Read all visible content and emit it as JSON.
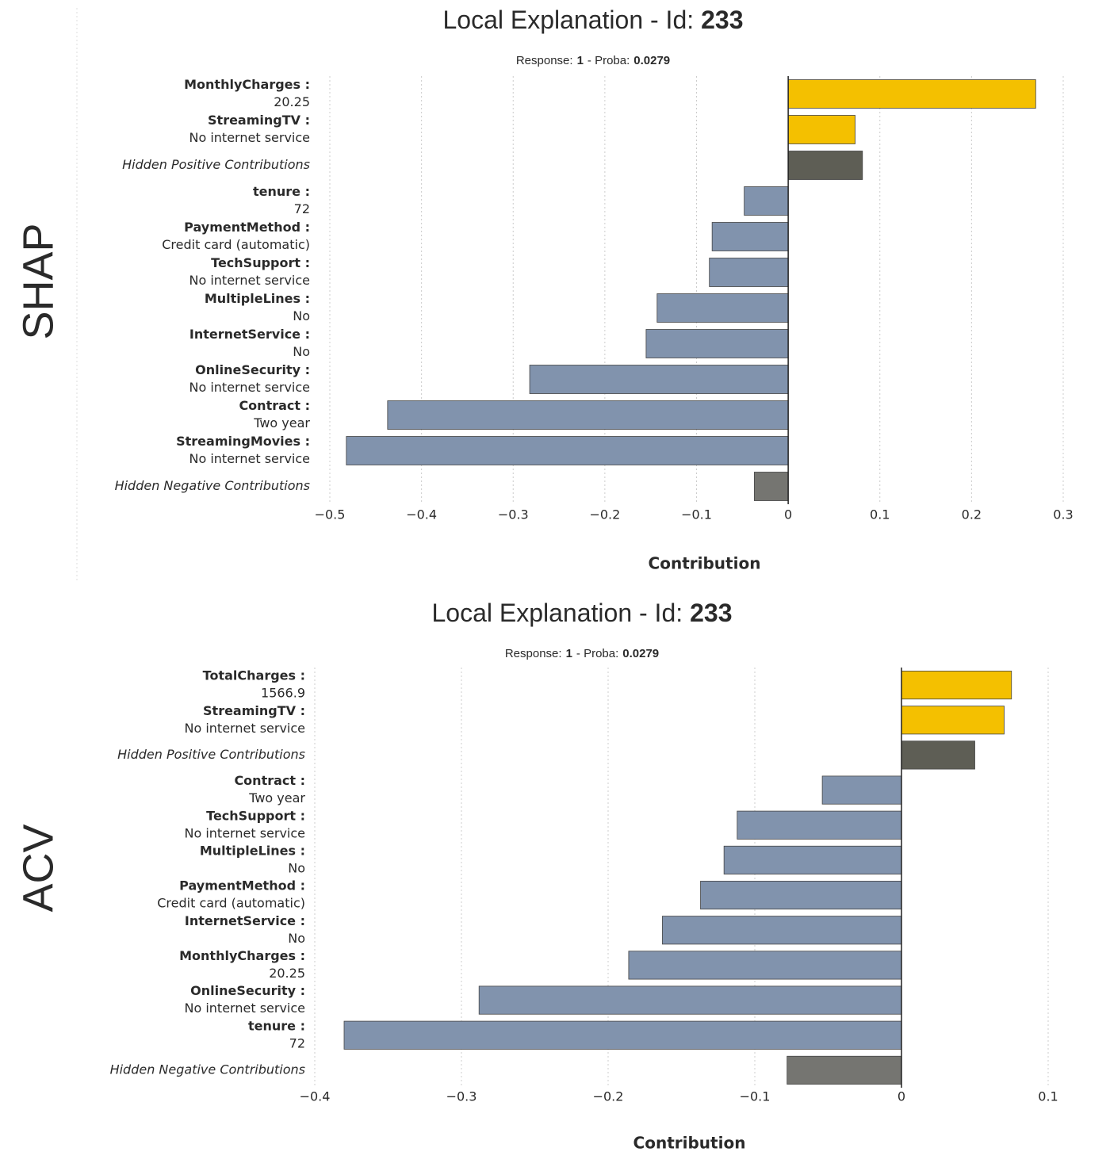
{
  "chart_data": [
    {
      "type": "barh",
      "method": "SHAP",
      "title": "Local Explanation - Id:",
      "id": "233",
      "response_label": "Response:",
      "response": "1",
      "proba_label": "- Proba:",
      "proba": "0.0279",
      "xlabel": "Contribution",
      "categories": [
        {
          "name": "MonthlyCharges :",
          "value": "20.25"
        },
        {
          "name": "StreamingTV :",
          "value": "No internet service"
        },
        {
          "name": "Hidden Positive Contributions"
        },
        {
          "name": "tenure :",
          "value": "72"
        },
        {
          "name": "PaymentMethod :",
          "value": "Credit card (automatic)"
        },
        {
          "name": "TechSupport :",
          "value": "No internet service"
        },
        {
          "name": "MultipleLines :",
          "value": "No"
        },
        {
          "name": "InternetService :",
          "value": "No"
        },
        {
          "name": "OnlineSecurity :",
          "value": "No internet service"
        },
        {
          "name": "Contract :",
          "value": "Two year"
        },
        {
          "name": "StreamingMovies :",
          "value": "No internet service"
        },
        {
          "name": "Hidden Negative Contributions"
        }
      ],
      "values": [
        0.27,
        0.073,
        0.081,
        -0.048,
        -0.083,
        -0.086,
        -0.143,
        -0.155,
        -0.282,
        -0.437,
        -0.482,
        -0.037
      ],
      "colors": {
        "positive": "#f4c000",
        "negative": "#8193ad",
        "hidden_positive": "#5e5e55",
        "hidden_negative": "#757571"
      },
      "xlim": [
        -0.5,
        0.3
      ],
      "xticks": [
        {
          "value": -0.5,
          "label": "−0.5"
        },
        {
          "value": -0.4,
          "label": "−0.4"
        },
        {
          "value": -0.3,
          "label": "−0.3"
        },
        {
          "value": -0.2,
          "label": "−0.2"
        },
        {
          "value": -0.1,
          "label": "−0.1"
        },
        0,
        0.1,
        0.2,
        0.3
      ],
      "grid": true
    },
    {
      "type": "barh",
      "method": "ACV",
      "title": "Local Explanation - Id:",
      "id": "233",
      "response_label": "Response:",
      "response": "1",
      "proba_label": "- Proba:",
      "proba": "0.0279",
      "xlabel": "Contribution",
      "categories": [
        {
          "name": "TotalCharges :",
          "value": "1566.9"
        },
        {
          "name": "StreamingTV :",
          "value": "No internet service"
        },
        {
          "name": "Hidden Positive Contributions"
        },
        {
          "name": "Contract :",
          "value": "Two year"
        },
        {
          "name": "TechSupport :",
          "value": "No internet service"
        },
        {
          "name": "MultipleLines :",
          "value": "No"
        },
        {
          "name": "PaymentMethod :",
          "value": "Credit card (automatic)"
        },
        {
          "name": "InternetService :",
          "value": "No"
        },
        {
          "name": "MonthlyCharges :",
          "value": "20.25"
        },
        {
          "name": "OnlineSecurity :",
          "value": "No internet service"
        },
        {
          "name": "tenure :",
          "value": "72"
        },
        {
          "name": "Hidden Negative Contributions"
        }
      ],
      "values": [
        0.075,
        0.07,
        0.05,
        -0.054,
        -0.112,
        -0.121,
        -0.137,
        -0.163,
        -0.186,
        -0.288,
        -0.38,
        -0.078
      ],
      "colors": {
        "positive": "#f4c000",
        "negative": "#8193ad",
        "hidden_positive": "#5e5e55",
        "hidden_negative": "#757571"
      },
      "xlim": [
        -0.4,
        0.1
      ],
      "xticks": [
        {
          "value": -0.4,
          "label": "−0.4"
        },
        {
          "value": -0.3,
          "label": "−0.3"
        },
        {
          "value": -0.2,
          "label": "−0.2"
        },
        {
          "value": -0.1,
          "label": "−0.1"
        },
        0,
        0.1
      ],
      "grid": true
    }
  ]
}
